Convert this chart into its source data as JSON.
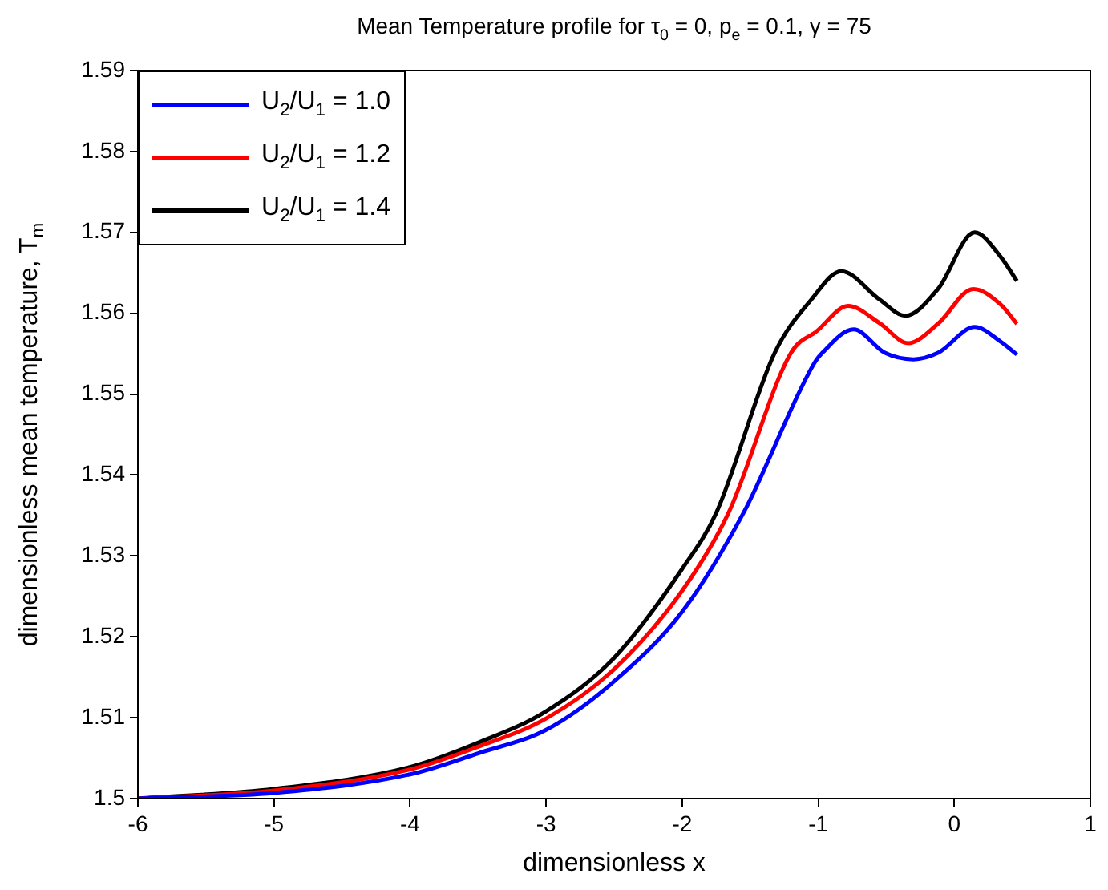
{
  "chart_data": {
    "type": "line",
    "title": "Mean Temperature profile for τ$_{0}$ = 0, p$_{e}$ = 0.1, γ = 75",
    "xlabel": "dimensionless x",
    "ylabel": "dimensionless mean temperature, T$_{m}$",
    "xlim": [
      -6,
      1
    ],
    "xticks": [
      -6,
      -5,
      -4,
      -3,
      -2,
      -1,
      0,
      1
    ],
    "ylim": [
      1.5,
      1.59
    ],
    "yticks": [
      1.5,
      1.51,
      1.52,
      1.53,
      1.54,
      1.55,
      1.56,
      1.57,
      1.58,
      1.59
    ],
    "grid": false,
    "legend": "top left",
    "marker": "none",
    "line_style": "solid",
    "series": [
      {
        "name": "U$_{2}$/U$_{1}$ = 1.0",
        "color": "#0000ff",
        "x": [
          -6,
          -5,
          -4,
          -3.5,
          -3,
          -2.5,
          -2,
          -1.55,
          -1.03,
          -0.97,
          -0.74,
          -0.51,
          -0.3,
          -0.12,
          0.15,
          0.34,
          0.46
        ],
        "values": [
          1.5,
          1.5007,
          1.503,
          1.5056,
          1.5085,
          1.5145,
          1.5231,
          1.5353,
          1.5538,
          1.5551,
          1.558,
          1.5551,
          1.5543,
          1.5551,
          1.5583,
          1.5565,
          1.5549
        ]
      },
      {
        "name": "U$_{2}$/U$_{1}$ = 1.2",
        "color": "#ff0000",
        "x": [
          -6,
          -5,
          -4,
          -3.5,
          -3,
          -2.5,
          -2,
          -1.66,
          -1.2,
          -1.01,
          -0.78,
          -0.55,
          -0.34,
          -0.12,
          0.14,
          0.34,
          0.46
        ],
        "values": [
          1.5,
          1.501,
          1.5036,
          1.5064,
          1.5099,
          1.516,
          1.5257,
          1.5353,
          1.5551,
          1.5578,
          1.5609,
          1.5588,
          1.5563,
          1.5587,
          1.563,
          1.5611,
          1.5587
        ]
      },
      {
        "name": "U$_{2}$/U$_{1}$ = 1.4",
        "color": "#000000",
        "x": [
          -6,
          -5,
          -4,
          -3.5,
          -3,
          -2.5,
          -2,
          -1.75,
          -1.32,
          -1.05,
          -0.83,
          -0.55,
          -0.36,
          -0.12,
          0.15,
          0.34,
          0.46
        ],
        "values": [
          1.5,
          1.5012,
          1.5039,
          1.5069,
          1.5108,
          1.5174,
          1.5284,
          1.5353,
          1.5551,
          1.5617,
          1.5652,
          1.5617,
          1.5597,
          1.563,
          1.57,
          1.567,
          1.564
        ]
      }
    ]
  }
}
